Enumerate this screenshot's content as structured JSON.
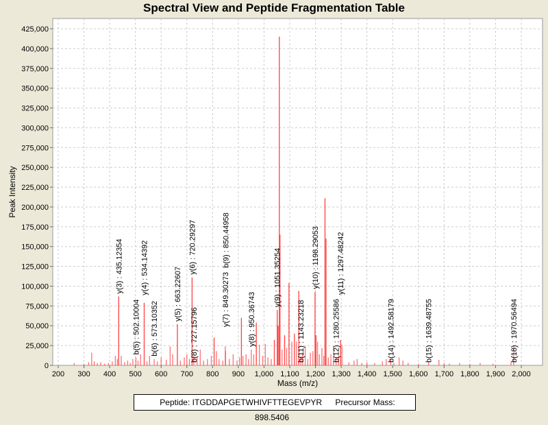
{
  "chart_data": {
    "type": "bar",
    "title": "Spectral View and Peptide Fragmentation Table",
    "xlabel": "Mass (m/z)",
    "ylabel": "Peak Intensity",
    "xlim": [
      180,
      2080
    ],
    "ylim": [
      0,
      437500
    ],
    "grid": true,
    "peak_color": "#ff4040",
    "x_ticks": [
      200,
      300,
      400,
      500,
      600,
      700,
      800,
      900,
      1000,
      1100,
      1200,
      1300,
      1400,
      1500,
      1600,
      1700,
      1800,
      1900,
      2000
    ],
    "x_tick_labels": [
      "200",
      "300",
      "400",
      "500",
      "600",
      "700",
      "800",
      "900",
      "1,000",
      "1,100",
      "1,200",
      "1,300",
      "1,400",
      "1,500",
      "1,600",
      "1,700",
      "1,800",
      "1,900",
      "2,000"
    ],
    "y_ticks": [
      0,
      25000,
      50000,
      75000,
      100000,
      125000,
      150000,
      175000,
      200000,
      225000,
      250000,
      275000,
      300000,
      325000,
      350000,
      375000,
      400000,
      425000
    ],
    "y_tick_labels": [
      "0",
      "25,000",
      "50,000",
      "75,000",
      "100,000",
      "125,000",
      "150,000",
      "175,000",
      "200,000",
      "225,000",
      "250,000",
      "275,000",
      "300,000",
      "325,000",
      "350,000",
      "375,000",
      "400,000",
      "425,000"
    ],
    "peaks": [
      [
        262,
        3000
      ],
      [
        300,
        2000
      ],
      [
        318,
        4000
      ],
      [
        330,
        16000
      ],
      [
        340,
        5000
      ],
      [
        352,
        3000
      ],
      [
        365,
        4000
      ],
      [
        380,
        2000
      ],
      [
        395,
        3000
      ],
      [
        410,
        5000
      ],
      [
        422,
        12000
      ],
      [
        430,
        8000
      ],
      [
        435.12,
        87000
      ],
      [
        445,
        12000
      ],
      [
        458,
        4000
      ],
      [
        470,
        6000
      ],
      [
        480,
        3000
      ],
      [
        490,
        8000
      ],
      [
        502.1,
        10000
      ],
      [
        510,
        6000
      ],
      [
        520,
        14000
      ],
      [
        534.14,
        79000
      ],
      [
        545,
        5000
      ],
      [
        555,
        12000
      ],
      [
        573.1,
        8000
      ],
      [
        585,
        5000
      ],
      [
        600,
        10000
      ],
      [
        620,
        7000
      ],
      [
        635,
        24000
      ],
      [
        645,
        14000
      ],
      [
        663.23,
        52000
      ],
      [
        675,
        6000
      ],
      [
        690,
        10000
      ],
      [
        700,
        14000
      ],
      [
        710,
        8000
      ],
      [
        720.29,
        111000
      ],
      [
        727.16,
        12000
      ],
      [
        740,
        10000
      ],
      [
        752,
        20000
      ],
      [
        765,
        6000
      ],
      [
        780,
        8000
      ],
      [
        795,
        12000
      ],
      [
        806,
        35000
      ],
      [
        815,
        18000
      ],
      [
        825,
        8000
      ],
      [
        840,
        6000
      ],
      [
        849.3,
        24000
      ],
      [
        850.45,
        18000
      ],
      [
        865,
        8000
      ],
      [
        880,
        14000
      ],
      [
        895,
        6000
      ],
      [
        905,
        10000
      ],
      [
        912,
        60000
      ],
      [
        918,
        12000
      ],
      [
        930,
        14000
      ],
      [
        940,
        8000
      ],
      [
        950.37,
        20000
      ],
      [
        960,
        14000
      ],
      [
        970,
        54000
      ],
      [
        982,
        26000
      ],
      [
        995,
        12000
      ],
      [
        1005,
        27000
      ],
      [
        1015,
        10000
      ],
      [
        1028,
        8000
      ],
      [
        1040,
        32000
      ],
      [
        1051.35,
        70000
      ],
      [
        1055,
        50000
      ],
      [
        1059.5,
        415000
      ],
      [
        1062,
        165000
      ],
      [
        1070,
        20000
      ],
      [
        1080,
        38000
      ],
      [
        1088,
        22000
      ],
      [
        1097,
        104000
      ],
      [
        1108,
        30000
      ],
      [
        1118,
        40000
      ],
      [
        1126,
        30000
      ],
      [
        1135,
        94000
      ],
      [
        1143.23,
        12000
      ],
      [
        1150,
        14000
      ],
      [
        1160,
        24000
      ],
      [
        1170,
        8000
      ],
      [
        1180,
        16000
      ],
      [
        1190,
        18000
      ],
      [
        1198.29,
        93000
      ],
      [
        1202,
        38000
      ],
      [
        1208,
        30000
      ],
      [
        1215,
        14000
      ],
      [
        1225,
        22000
      ],
      [
        1232,
        12000
      ],
      [
        1237,
        211000
      ],
      [
        1241,
        160000
      ],
      [
        1250,
        10000
      ],
      [
        1260,
        14000
      ],
      [
        1270,
        24000
      ],
      [
        1280.26,
        10000
      ],
      [
        1290,
        12000
      ],
      [
        1297.48,
        32000
      ],
      [
        1303,
        26000
      ],
      [
        1330,
        4000
      ],
      [
        1350,
        6000
      ],
      [
        1362,
        8000
      ],
      [
        1380,
        3000
      ],
      [
        1400,
        4000
      ],
      [
        1430,
        3000
      ],
      [
        1460,
        5000
      ],
      [
        1475,
        8000
      ],
      [
        1492.58,
        8000
      ],
      [
        1505,
        3000
      ],
      [
        1525,
        10000
      ],
      [
        1540,
        6000
      ],
      [
        1560,
        3000
      ],
      [
        1600,
        2000
      ],
      [
        1639.49,
        4000
      ],
      [
        1680,
        7000
      ],
      [
        1700,
        3000
      ],
      [
        1720,
        2000
      ],
      [
        1760,
        3000
      ],
      [
        1800,
        2000
      ],
      [
        1840,
        3000
      ],
      [
        1890,
        2000
      ],
      [
        1960,
        4000
      ],
      [
        1970.56,
        25000
      ]
    ],
    "annotations": [
      {
        "mass": 435.12,
        "intensity": 87000,
        "label": "y(3) : 435.12354"
      },
      {
        "mass": 502.1,
        "intensity": 10000,
        "label": "b(5) : 502.10004"
      },
      {
        "mass": 534.14,
        "intensity": 79000,
        "label": "y(4) : 534.14392"
      },
      {
        "mass": 573.1,
        "intensity": 8000,
        "label": "b(6) : 573.10352"
      },
      {
        "mass": 663.23,
        "intensity": 52000,
        "label": "y(5) : 663.22607"
      },
      {
        "mass": 720.29,
        "intensity": 111000,
        "label": "y(6) : 720.29297"
      },
      {
        "mass": 727.16,
        "intensity": 0,
        "label": "b(8) : 727.15796"
      },
      {
        "mass": 849.3,
        "intensity": 45000,
        "label": "y(7) : 849.30273"
      },
      {
        "mass": 850.45,
        "intensity": 18000,
        "label": "b(9) : 850.44958"
      },
      {
        "mass": 950.37,
        "intensity": 20000,
        "label": "y(8) : 950.36743"
      },
      {
        "mass": 1051.35,
        "intensity": 70000,
        "label": "y(9) : 1051.35254"
      },
      {
        "mass": 1143.23,
        "intensity": 0,
        "label": "b(11) : 1143.23218"
      },
      {
        "mass": 1198.29,
        "intensity": 93000,
        "label": "y(10) : 1198.29053"
      },
      {
        "mass": 1280.26,
        "intensity": 0,
        "label": "b(12) : 1280.25586"
      },
      {
        "mass": 1297.48,
        "intensity": 0,
        "label": "y(11) : 1297.48242"
      },
      {
        "mass": 1492.58,
        "intensity": 0,
        "label": "b(14) : 1492.58179"
      },
      {
        "mass": 1639.49,
        "intensity": 0,
        "label": "b(15) : 1639.48755"
      },
      {
        "mass": 1970.56,
        "intensity": 0,
        "label": "b(18) : 1970.56494"
      }
    ]
  },
  "legend": {
    "peptide": "Peptide: ITGDDAPGETWHIVFTTEGEVPYR",
    "precursor": "Precursor Mass: 898.5406"
  }
}
